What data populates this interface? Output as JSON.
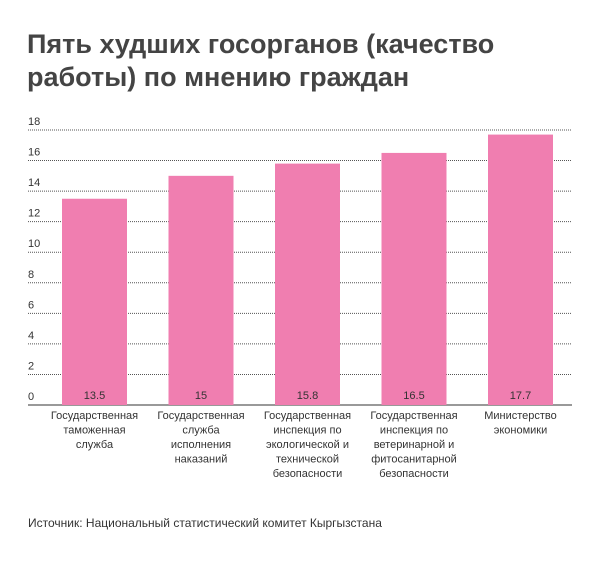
{
  "title": "Пять худших госорганов (качество работы) по мнению граждан",
  "source": "Источник: Национальный статистический комитет Кыргызстана",
  "colors": {
    "bar": "#f07eb0",
    "grid": "#555555",
    "text": "#333333"
  },
  "chart_data": {
    "type": "bar",
    "title": "Пять худших госорганов (качество работы) по мнению граждан",
    "xlabel": "",
    "ylabel": "",
    "ylim": [
      0,
      18
    ],
    "yticks": [
      0,
      2,
      4,
      6,
      8,
      10,
      12,
      14,
      16,
      18
    ],
    "grid": true,
    "categories": [
      [
        "Государственная",
        "таможенная",
        "служба"
      ],
      [
        "Государственная",
        "служба",
        "исполнения",
        "наказаний"
      ],
      [
        "Государственная",
        "инспекция по",
        "экологической и",
        "технической",
        "безопасности"
      ],
      [
        "Государственная",
        "инспекция по",
        "ветеринарной и",
        "фитосанитарной",
        "безопасности"
      ],
      [
        "Министерство",
        "экономики"
      ]
    ],
    "values": [
      13.5,
      15,
      15.8,
      16.5,
      17.7
    ],
    "value_labels": [
      "13.5",
      "15",
      "15.8",
      "16.5",
      "17.7"
    ]
  }
}
